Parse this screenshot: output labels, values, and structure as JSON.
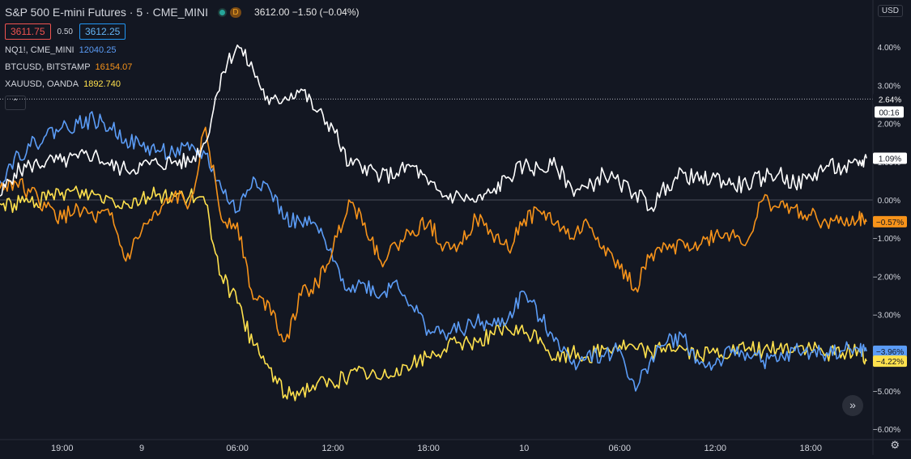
{
  "header": {
    "title": "S&P 500 E-mini Futures · 5 · CME_MINI",
    "delayed_badge": "D",
    "price_line": "3612.00 −1.50 (−0.04%)",
    "bid": "3611.75",
    "spread": "0.50",
    "ask": "3612.25",
    "currency": "USD"
  },
  "compare": [
    {
      "symbol": "NQ1!, CME_MINI",
      "value": "12040.25",
      "color": "#5b9cf6"
    },
    {
      "symbol": "BTCUSD, BITSTAMP",
      "value": "16154.07",
      "color": "#f7931a"
    },
    {
      "symbol": "XAUUSD, OANDA",
      "value": "1892.740",
      "color": "#ffe14d"
    }
  ],
  "icons": {
    "collapse": "chevron-up-icon",
    "scroll": "double-chevron-right-icon",
    "settings": "gear-icon",
    "market_status": "green-dot-icon"
  },
  "chart_data": {
    "type": "line",
    "title": "S&P 500 E-mini Futures · 5 · CME_MINI",
    "ylabel": "",
    "xlabel": "",
    "ylim": [
      -6.2,
      4.3
    ],
    "y_ticks": [
      "4.00%",
      "3.00%",
      "2.00%",
      "1.00%",
      "0.00%",
      "−1.00%",
      "−2.00%",
      "−3.00%",
      "−4.00%",
      "−5.00%",
      "−6.00%"
    ],
    "y_tick_values": [
      4,
      3,
      2,
      1,
      0,
      -1,
      -2,
      -3,
      -4,
      -5,
      -6
    ],
    "x_ticks": [
      {
        "label": "19:00",
        "t": 1
      },
      {
        "label": "9",
        "t": 6
      },
      {
        "label": "06:00",
        "t": 12
      },
      {
        "label": "12:00",
        "t": 18
      },
      {
        "label": "18:00",
        "t": 24
      },
      {
        "label": "10",
        "t": 30
      },
      {
        "label": "06:00",
        "t": 36
      },
      {
        "label": "12:00",
        "t": 42
      },
      {
        "label": "18:00",
        "t": 48
      }
    ],
    "x_range": [
      -2.9,
      51.9
    ],
    "reference_line": 2.64,
    "time_label": "00:16",
    "series": [
      {
        "name": "S&P 500 E-mini Futures",
        "color": "#ffffff",
        "last_label": "1.09%",
        "x": [
          -2.9,
          -2,
          -1,
          0,
          1,
          2,
          3,
          4,
          5,
          6,
          7,
          8,
          9,
          10,
          11,
          12,
          13,
          14,
          15,
          16,
          17,
          18,
          19,
          20,
          21,
          22,
          23,
          24,
          25,
          26,
          27,
          28,
          29,
          30,
          31,
          32,
          33,
          34,
          35,
          36,
          37,
          38,
          39,
          40,
          41,
          42,
          43,
          44,
          45,
          46,
          47,
          48,
          49,
          50,
          51,
          51.5
        ],
        "y": [
          0.1,
          0.7,
          0.9,
          1.0,
          1.0,
          1.1,
          1.2,
          0.9,
          0.8,
          0.9,
          0.95,
          1.0,
          1.0,
          1.5,
          3.3,
          4.05,
          3.4,
          2.5,
          2.7,
          2.9,
          2.3,
          1.9,
          0.9,
          0.9,
          0.6,
          0.7,
          0.9,
          0.4,
          0.1,
          0.1,
          -0.05,
          0.2,
          0.6,
          0.9,
          0.8,
          0.9,
          0.3,
          0.3,
          0.7,
          0.4,
          0.2,
          -0.2,
          0.4,
          0.7,
          0.5,
          0.6,
          0.4,
          0.4,
          0.6,
          0.7,
          0.4,
          0.6,
          0.9,
          0.8,
          0.9,
          1.09
        ]
      },
      {
        "name": "NQ1!, CME_MINI",
        "color": "#5b9cf6",
        "last_label": "−3.96%",
        "x": [
          -2.9,
          -2,
          -1,
          0,
          1,
          2,
          3,
          4,
          5,
          6,
          7,
          8,
          9,
          10,
          11,
          12,
          13,
          14,
          15,
          16,
          17,
          18,
          19,
          20,
          21,
          22,
          23,
          24,
          25,
          26,
          27,
          28,
          29,
          30,
          31,
          32,
          33,
          34,
          35,
          36,
          37,
          38,
          39,
          40,
          41,
          42,
          43,
          44,
          45,
          46,
          47,
          48,
          49,
          50,
          51,
          51.5
        ],
        "y": [
          0.5,
          1.1,
          1.4,
          1.7,
          1.9,
          2.0,
          2.1,
          1.9,
          1.6,
          1.4,
          1.3,
          1.25,
          1.3,
          1.2,
          0.3,
          -0.3,
          0.6,
          0.3,
          -0.5,
          -0.6,
          -0.7,
          -1.6,
          -2.3,
          -2.2,
          -2.5,
          -2.1,
          -2.8,
          -3.4,
          -3.5,
          -3.4,
          -3.2,
          -3.3,
          -3.1,
          -2.4,
          -3.1,
          -3.6,
          -4.3,
          -4.0,
          -4.1,
          -3.9,
          -5.0,
          -4.1,
          -3.7,
          -3.6,
          -4.3,
          -4.3,
          -4.0,
          -4.0,
          -4.2,
          -4.2,
          -3.95,
          -4.0,
          -4.0,
          -3.95,
          -3.9,
          -3.96
        ]
      },
      {
        "name": "BTCUSD, BITSTAMP",
        "color": "#f7931a",
        "last_label": "−0.57%",
        "x": [
          -2.9,
          -2,
          -1,
          0,
          1,
          2,
          3,
          4,
          5,
          6,
          7,
          8,
          9,
          10,
          11,
          12,
          13,
          14,
          15,
          16,
          17,
          18,
          19,
          20,
          21,
          22,
          23,
          24,
          25,
          26,
          27,
          28,
          29,
          30,
          31,
          32,
          33,
          34,
          35,
          36,
          37,
          38,
          39,
          40,
          41,
          42,
          43,
          44,
          45,
          46,
          47,
          48,
          49,
          50,
          51,
          51.5
        ],
        "y": [
          0.3,
          0.5,
          0.2,
          -0.2,
          -0.5,
          -0.2,
          -0.5,
          -0.4,
          -1.6,
          -0.8,
          -0.4,
          0.1,
          -0.1,
          1.9,
          -0.5,
          -0.6,
          -2.6,
          -2.7,
          -3.7,
          -2.5,
          -2.2,
          -1.3,
          0.0,
          -0.6,
          -1.6,
          -1.2,
          -0.8,
          -0.6,
          -1.2,
          -1.1,
          -0.5,
          -0.9,
          -1.3,
          -0.5,
          -0.3,
          -0.6,
          -1.0,
          -0.6,
          -1.2,
          -1.8,
          -2.3,
          -1.4,
          -1.3,
          -1.1,
          -1.2,
          -0.9,
          -0.9,
          -1.1,
          0.0,
          -0.2,
          -0.2,
          -0.4,
          -0.6,
          -0.6,
          -0.5,
          -0.57
        ]
      },
      {
        "name": "XAUUSD, OANDA",
        "color": "#ffe14d",
        "last_label": "−4.22%",
        "x": [
          -2.9,
          -2,
          -1,
          0,
          1,
          2,
          3,
          4,
          5,
          6,
          7,
          8,
          9,
          10,
          11,
          12,
          13,
          14,
          15,
          16,
          17,
          18,
          19,
          20,
          21,
          22,
          23,
          24,
          25,
          26,
          27,
          28,
          29,
          30,
          31,
          32,
          33,
          34,
          35,
          36,
          37,
          38,
          39,
          40,
          41,
          42,
          43,
          44,
          45,
          46,
          47,
          48,
          49,
          50,
          51,
          51.5
        ],
        "y": [
          -0.1,
          -0.1,
          -0.05,
          0.0,
          0.2,
          0.2,
          0.15,
          0.05,
          -0.1,
          0.05,
          0.15,
          0.1,
          0.1,
          -0.1,
          -2.0,
          -2.7,
          -3.8,
          -4.4,
          -5.1,
          -5.0,
          -4.8,
          -4.8,
          -4.6,
          -4.5,
          -4.7,
          -4.4,
          -4.3,
          -4.1,
          -3.9,
          -3.75,
          -3.7,
          -3.5,
          -3.4,
          -3.5,
          -3.6,
          -4.2,
          -4.0,
          -4.1,
          -3.9,
          -3.8,
          -3.9,
          -4.0,
          -3.8,
          -3.9,
          -4.1,
          -4.0,
          -4.0,
          -3.9,
          -3.95,
          -3.9,
          -3.85,
          -3.9,
          -4.0,
          -4.0,
          -3.9,
          -4.22
        ]
      }
    ]
  }
}
